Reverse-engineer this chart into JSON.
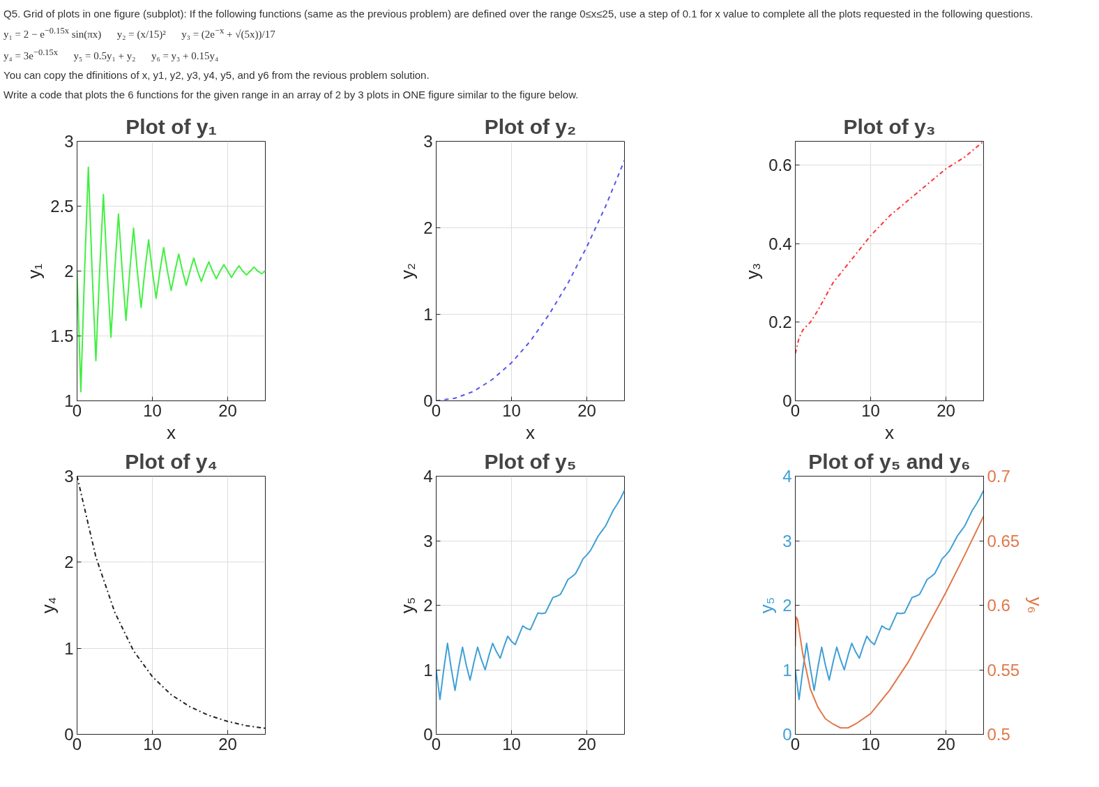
{
  "chart_data": [
    {
      "type": "line",
      "title": "Plot of y₁",
      "xlabel": "x",
      "ylabel": "y₁",
      "annotations": [
        "Q5. Grid of plots in one figure (subplot): If the following functions (same as the previous problem) are defined over the range 0≤x≤25, use a step of 0.1 for x value to complete all the plots requested in the following questions.",
        "y₁ = 2 − e$^{−0.15x}$ sin(πx)",
        "y₂ = (x/15)²",
        "y₃ = (2e$^{−x}$ + √(5x))/17",
        "y₄ = 3e$^{−0.15x}$",
        "y₅ = 0.5y₁ + y₂",
        "y₆ = y₃ + 0.15y₄",
        "You can copy the dfinitions of x, y1, y2, y3, y4, y5, and y6 from the revious problem solution.",
        "Write a code that plots the 6 functions for the given range in an array of 2 by 3 plots in ONE figure similar to the figure below."
      ],
      "xlim": [
        0,
        25
      ],
      "xticks": [
        0,
        10,
        20
      ],
      "ylim": [
        1,
        3
      ],
      "yticks": [
        1,
        1.5,
        2,
        2.5,
        3
      ],
      "grid": true,
      "series": [
        {
          "color": "#40f040",
          "line_style": "solid",
          "x": [
            0,
            0.5,
            1,
            1.5,
            2,
            2.5,
            3,
            3.5,
            4,
            4.5,
            5,
            5.5,
            6,
            6.5,
            7,
            7.5,
            8,
            8.5,
            9,
            9.5,
            10,
            10.5,
            11,
            11.5,
            12,
            12.5,
            13,
            13.5,
            14,
            14.5,
            15,
            15.5,
            16,
            16.5,
            17,
            17.5,
            18,
            18.5,
            19,
            19.5,
            20,
            20.5,
            21,
            21.5,
            22,
            22.5,
            23,
            23.5,
            24,
            24.5,
            25
          ],
          "values": [
            2,
            1.07,
            2,
            2.8,
            2,
            1.31,
            2,
            2.59,
            2,
            1.49,
            2,
            2.44,
            2,
            1.62,
            2,
            2.33,
            2,
            1.72,
            2,
            2.24,
            2,
            1.79,
            2,
            2.18,
            2,
            1.85,
            2,
            2.13,
            2,
            1.89,
            2,
            2.1,
            2,
            1.92,
            2,
            2.07,
            2,
            1.94,
            2,
            2.05,
            2,
            1.95,
            2,
            2.04,
            2,
            1.97,
            2,
            2.03,
            2,
            1.98,
            2
          ]
        }
      ]
    },
    {
      "type": "line",
      "title": "Plot of y₂",
      "xlabel": "x",
      "ylabel": "y₂",
      "xlim": [
        0,
        25
      ],
      "xticks": [
        0,
        10,
        20
      ],
      "ylim": [
        0,
        3
      ],
      "yticks": [
        0,
        1,
        2,
        3
      ],
      "grid": true,
      "series": [
        {
          "color": "#5555ee",
          "line_style": "dashed",
          "x": [
            0,
            2.5,
            5,
            7.5,
            10,
            12.5,
            15,
            17.5,
            20,
            22.5,
            25
          ],
          "values": [
            0,
            0.03,
            0.11,
            0.25,
            0.44,
            0.69,
            1,
            1.36,
            1.78,
            2.25,
            2.78
          ]
        }
      ]
    },
    {
      "type": "line",
      "title": "Plot of y₃",
      "xlabel": "x",
      "ylabel": "y₃",
      "xlim": [
        0,
        25
      ],
      "xticks": [
        0,
        10,
        20
      ],
      "ylim": [
        0,
        0.66
      ],
      "yticks": [
        0,
        0.2,
        0.4,
        0.6
      ],
      "grid": true,
      "series": [
        {
          "color": "#ff3333",
          "line_style": "dashdot",
          "x": [
            0,
            0.5,
            1,
            2,
            3,
            5,
            7.5,
            10,
            12.5,
            15,
            17.5,
            20,
            22.5,
            25
          ],
          "values": [
            0.12,
            0.16,
            0.18,
            0.2,
            0.23,
            0.3,
            0.36,
            0.42,
            0.47,
            0.51,
            0.55,
            0.59,
            0.62,
            0.66
          ]
        }
      ]
    },
    {
      "type": "line",
      "title": "Plot of y₄",
      "ylabel": "y₄",
      "xlim": [
        0,
        25
      ],
      "xticks": [
        0,
        10,
        20
      ],
      "ylim": [
        0,
        3
      ],
      "yticks": [
        0,
        1,
        2,
        3
      ],
      "grid": true,
      "series": [
        {
          "color": "#222222",
          "line_style": "dashdot",
          "x": [
            0,
            2.5,
            5,
            7.5,
            10,
            12.5,
            15,
            17.5,
            20,
            22.5,
            25
          ],
          "values": [
            3,
            2.06,
            1.42,
            0.97,
            0.67,
            0.46,
            0.32,
            0.22,
            0.15,
            0.1,
            0.07
          ]
        }
      ]
    },
    {
      "type": "line",
      "title": "Plot of y₅",
      "ylabel": "y₅",
      "xlim": [
        0,
        25
      ],
      "xticks": [
        0,
        10,
        20
      ],
      "ylim": [
        0,
        4
      ],
      "yticks": [
        0,
        1,
        2,
        3,
        4
      ],
      "grid": true,
      "series": [
        {
          "color": "#3f9fd6",
          "line_style": "solid",
          "x": [
            0,
            0.5,
            1,
            1.5,
            2,
            2.5,
            3,
            3.5,
            4,
            4.5,
            5,
            5.5,
            6,
            6.5,
            7,
            7.5,
            8,
            8.5,
            9,
            9.5,
            10,
            10.5,
            11,
            11.5,
            12,
            12.5,
            13,
            13.5,
            14,
            14.5,
            15,
            15.5,
            16,
            16.5,
            17,
            17.5,
            18,
            18.5,
            19,
            19.5,
            20,
            20.5,
            21,
            21.5,
            22,
            22.5,
            23,
            23.5,
            24,
            24.5,
            25
          ],
          "values": [
            1,
            0.54,
            1,
            1.41,
            1.02,
            0.68,
            1.04,
            1.35,
            1.07,
            0.84,
            1.11,
            1.35,
            1.16,
            1,
            1.22,
            1.41,
            1.28,
            1.18,
            1.36,
            1.52,
            1.44,
            1.39,
            1.54,
            1.68,
            1.64,
            1.62,
            1.75,
            1.88,
            1.87,
            1.88,
            2,
            2.12,
            2.14,
            2.17,
            2.28,
            2.4,
            2.44,
            2.49,
            2.6,
            2.72,
            2.78,
            2.85,
            2.96,
            3.07,
            3.15,
            3.23,
            3.35,
            3.47,
            3.56,
            3.66,
            3.78
          ]
        }
      ]
    },
    {
      "type": "line",
      "title": "Plot of y₅ and y₆",
      "ylabel": "y₅",
      "y2label": "y₆",
      "xlim": [
        0,
        25
      ],
      "xticks": [
        0,
        10,
        20
      ],
      "ylim": [
        0,
        4
      ],
      "yticks": [
        0,
        1,
        2,
        3,
        4
      ],
      "y2lim": [
        0.5,
        0.7
      ],
      "y2ticks": [
        0.5,
        0.55,
        0.6,
        0.65,
        0.7
      ],
      "grid": true,
      "series": [
        {
          "color": "#3f9fd6",
          "line_style": "solid",
          "x": [
            0,
            0.5,
            1,
            1.5,
            2,
            2.5,
            3,
            3.5,
            4,
            4.5,
            5,
            5.5,
            6,
            6.5,
            7,
            7.5,
            8,
            8.5,
            9,
            9.5,
            10,
            10.5,
            11,
            11.5,
            12,
            12.5,
            13,
            13.5,
            14,
            14.5,
            15,
            15.5,
            16,
            16.5,
            17,
            17.5,
            18,
            18.5,
            19,
            19.5,
            20,
            20.5,
            21,
            21.5,
            22,
            22.5,
            23,
            23.5,
            24,
            24.5,
            25
          ],
          "values": [
            1,
            0.54,
            1,
            1.41,
            1.02,
            0.68,
            1.04,
            1.35,
            1.07,
            0.84,
            1.11,
            1.35,
            1.16,
            1,
            1.22,
            1.41,
            1.28,
            1.18,
            1.36,
            1.52,
            1.44,
            1.39,
            1.54,
            1.68,
            1.64,
            1.62,
            1.75,
            1.88,
            1.87,
            1.88,
            2,
            2.12,
            2.14,
            2.17,
            2.28,
            2.4,
            2.44,
            2.49,
            2.6,
            2.72,
            2.78,
            2.85,
            2.96,
            3.07,
            3.15,
            3.23,
            3.35,
            3.47,
            3.56,
            3.66,
            3.78
          ]
        },
        {
          "color": "#e0784a",
          "line_style": "solid",
          "axis": "y2",
          "x": [
            0,
            0.1,
            0.3,
            0.5,
            1,
            2,
            3,
            4,
            5,
            6,
            7,
            8,
            10,
            12.5,
            15,
            17.5,
            20,
            22.5,
            25
          ],
          "values": [
            0.568,
            0.591,
            0.589,
            0.581,
            0.562,
            0.535,
            0.521,
            0.512,
            0.508,
            0.505,
            0.505,
            0.508,
            0.516,
            0.534,
            0.556,
            0.583,
            0.61,
            0.639,
            0.669
          ]
        }
      ]
    }
  ]
}
